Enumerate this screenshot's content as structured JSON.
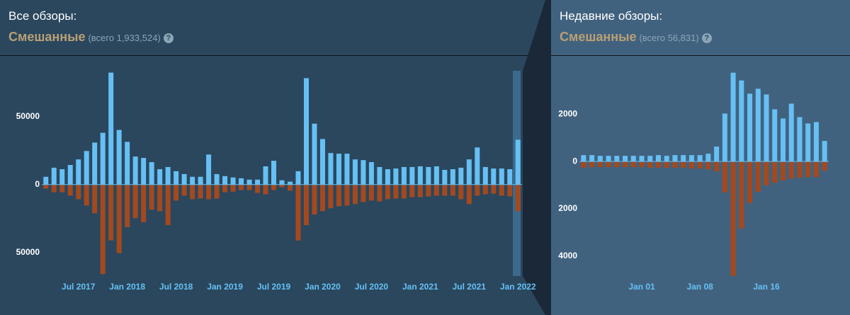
{
  "chart_data": [
    {
      "type": "bar",
      "title": "Все обзоры:",
      "subtitle": "Смешанные",
      "total": "(всего 1,933,524)",
      "help": "?",
      "categories": [
        null,
        null,
        null,
        null,
        "Jul 2017",
        null,
        null,
        null,
        null,
        null,
        "Jan 2018",
        null,
        null,
        null,
        null,
        null,
        "Jul 2018",
        null,
        null,
        null,
        null,
        null,
        "Jan 2019",
        null,
        null,
        null,
        null,
        null,
        "Jul 2019",
        null,
        null,
        null,
        null,
        null,
        "Jan 2020",
        null,
        null,
        null,
        null,
        null,
        "Jul 2020",
        null,
        null,
        null,
        null,
        null,
        "Jan 2021",
        null,
        null,
        null,
        null,
        null,
        "Jul 2021",
        null,
        null,
        null,
        null,
        null,
        "Jan 2022"
      ],
      "series": [
        {
          "color": "#66c0f4",
          "values": [
            5700,
            12400,
            11300,
            14400,
            18500,
            24700,
            30900,
            38100,
            82400,
            40200,
            31400,
            20600,
            19600,
            16500,
            11300,
            12900,
            9800,
            7700,
            5700,
            5700,
            22100,
            7700,
            6200,
            5200,
            4600,
            3600,
            3600,
            13400,
            17500,
            3100,
            2100,
            9800,
            78300,
            44800,
            33500,
            23200,
            22700,
            22700,
            18500,
            18000,
            16500,
            12900,
            11300,
            11800,
            12900,
            12900,
            13400,
            12900,
            13400,
            10800,
            11300,
            12400,
            18500,
            27300,
            12900,
            11800,
            11800,
            11300,
            33000
          ]
        },
        {
          "color": "#a4491e",
          "values": [
            -3100,
            -5700,
            -5700,
            -8200,
            -10800,
            -15500,
            -21100,
            -65900,
            -41200,
            -50500,
            -31400,
            -24700,
            -27800,
            -18500,
            -19600,
            -29900,
            -11800,
            -8200,
            -10800,
            -10300,
            -10800,
            -10300,
            -5700,
            -5200,
            -4100,
            -4100,
            -6200,
            -7200,
            -4100,
            -2100,
            -4600,
            -41200,
            -29900,
            -22100,
            -19600,
            -17500,
            -16000,
            -15500,
            -14400,
            -12900,
            -11800,
            -12400,
            -10800,
            -10300,
            -10300,
            -9300,
            -9300,
            -8800,
            -8200,
            -8200,
            -8200,
            -10800,
            -14400,
            -8200,
            -7200,
            -6700,
            -8200,
            -8700,
            -19600
          ]
        }
      ],
      "ylim": [
        -70000,
        90000
      ],
      "yticks": [
        50000,
        0,
        {
          "value": -50000,
          "label": "50000"
        }
      ],
      "zero_line": true
    },
    {
      "type": "bar",
      "title": "Недавние обзоры:",
      "subtitle": "Смешанные",
      "total": "(всего 56,831)",
      "help": "?",
      "categories": [
        null,
        null,
        null,
        null,
        null,
        null,
        null,
        "Jan 01",
        null,
        null,
        null,
        null,
        null,
        null,
        "Jan 08",
        null,
        null,
        null,
        null,
        null,
        null,
        null,
        "Jan 16",
        null,
        null,
        null,
        null,
        null,
        null,
        null
      ],
      "series": [
        {
          "color": "#66c0f4",
          "values": [
            270,
            270,
            240,
            240,
            240,
            240,
            240,
            240,
            240,
            270,
            240,
            270,
            270,
            270,
            270,
            330,
            630,
            2030,
            3760,
            3430,
            2870,
            3080,
            2840,
            2210,
            1820,
            2450,
            1880,
            1610,
            1670,
            870
          ]
        },
        {
          "color": "#a4491e",
          "values": [
            -270,
            -240,
            -240,
            -240,
            -240,
            -240,
            -240,
            -240,
            -270,
            -270,
            -270,
            -270,
            -270,
            -300,
            -300,
            -330,
            -420,
            -1310,
            -4840,
            -2840,
            -1760,
            -1280,
            -1010,
            -900,
            -810,
            -720,
            -690,
            -660,
            -660,
            -390
          ]
        }
      ],
      "ylim": [
        -5000,
        4200
      ],
      "yticks": [
        2000,
        0,
        {
          "value": -2000,
          "label": "2000"
        },
        {
          "value": -4000,
          "label": "4000"
        }
      ],
      "zero_line": true
    }
  ]
}
